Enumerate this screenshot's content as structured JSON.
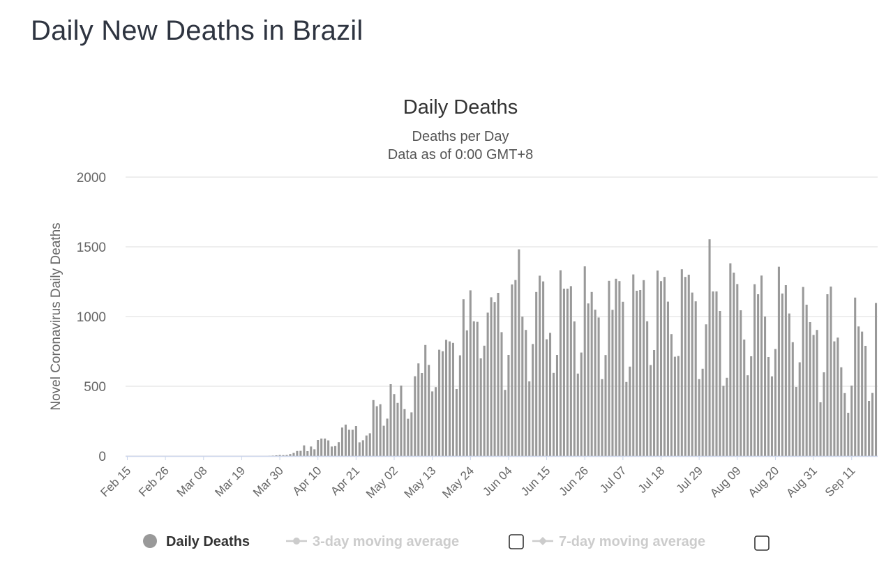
{
  "page": {
    "title": "Daily New Deaths in Brazil"
  },
  "legend": {
    "items": [
      {
        "label": "Daily Deaths",
        "active": true,
        "color": "#999999",
        "has_checkbox": false
      },
      {
        "label": "3-day moving average",
        "active": false,
        "color": "#cccccc",
        "has_checkbox": true
      },
      {
        "label": "7-day moving average",
        "active": false,
        "color": "#cccccc",
        "has_checkbox": true
      }
    ]
  },
  "chart_data": {
    "type": "bar",
    "title": "Daily Deaths",
    "subtitle": [
      "Deaths per Day",
      "Data as of 0:00 GMT+8"
    ],
    "ylabel": "Novel Coronavirus Daily Deaths",
    "xlabel": "",
    "ylim": [
      0,
      2000
    ],
    "yticks": [
      0,
      500,
      1000,
      1500,
      2000
    ],
    "grid": true,
    "legend_position": "bottom",
    "x_start": "2020-02-15",
    "x_ticks": [
      "Feb 15",
      "Feb 26",
      "Mar 08",
      "Mar 19",
      "Mar 30",
      "Apr 10",
      "Apr 21",
      "May 02",
      "May 13",
      "May 24",
      "Jun 04",
      "Jun 15",
      "Jun 26",
      "Jul 07",
      "Jul 18",
      "Jul 29",
      "Aug 09",
      "Aug 20",
      "Aug 31",
      "Sep 11"
    ],
    "series": [
      {
        "name": "Daily Deaths",
        "color": "#999999",
        "values": [
          0,
          0,
          0,
          0,
          0,
          0,
          0,
          0,
          0,
          0,
          0,
          0,
          0,
          0,
          0,
          0,
          0,
          0,
          0,
          0,
          0,
          0,
          0,
          0,
          0,
          0,
          0,
          0,
          0,
          0,
          0,
          0,
          0,
          0,
          0,
          0,
          0,
          0,
          0,
          0,
          0,
          1,
          3,
          5,
          7,
          6,
          7,
          14,
          22,
          36,
          37,
          76,
          35,
          68,
          48,
          115,
          125,
          125,
          112,
          68,
          71,
          99,
          204,
          225,
          188,
          188,
          215,
          98,
          113,
          147,
          163,
          401,
          357,
          371,
          217,
          268,
          515,
          444,
          381,
          505,
          336,
          267,
          313,
          572,
          664,
          595,
          796,
          653,
          463,
          494,
          762,
          751,
          833,
          822,
          811,
          480,
          722,
          1124,
          901,
          1188,
          966,
          962,
          700,
          791,
          1028,
          1138,
          1104,
          1170,
          888,
          474,
          725,
          1230,
          1262,
          1482,
          999,
          904,
          535,
          803,
          1176,
          1293,
          1252,
          837,
          883,
          596,
          725,
          1332,
          1200,
          1200,
          1218,
          965,
          591,
          742,
          1360,
          1094,
          1176,
          1049,
          993,
          551,
          724,
          1256,
          1048,
          1271,
          1254,
          1106,
          531,
          641,
          1302,
          1185,
          1190,
          1261,
          966,
          652,
          760,
          1330,
          1254,
          1284,
          1107,
          874,
          712,
          717,
          1339,
          1284,
          1300,
          1172,
          1109,
          551,
          626,
          944,
          1554,
          1180,
          1180,
          1040,
          503,
          561,
          1382,
          1315,
          1233,
          1045,
          835,
          579,
          715,
          1232,
          1160,
          1294,
          1000,
          710,
          571,
          767,
          1357,
          1165,
          1225,
          1022,
          816,
          495,
          672,
          1212,
          1085,
          960,
          868,
          904,
          385,
          600,
          1160,
          1215,
          822,
          849,
          636,
          451,
          310,
          505,
          1136,
          929,
          892,
          790,
          395,
          452,
          1097
        ]
      },
      {
        "name": "3-day moving average",
        "visible": false
      },
      {
        "name": "7-day moving average",
        "visible": false
      }
    ]
  }
}
